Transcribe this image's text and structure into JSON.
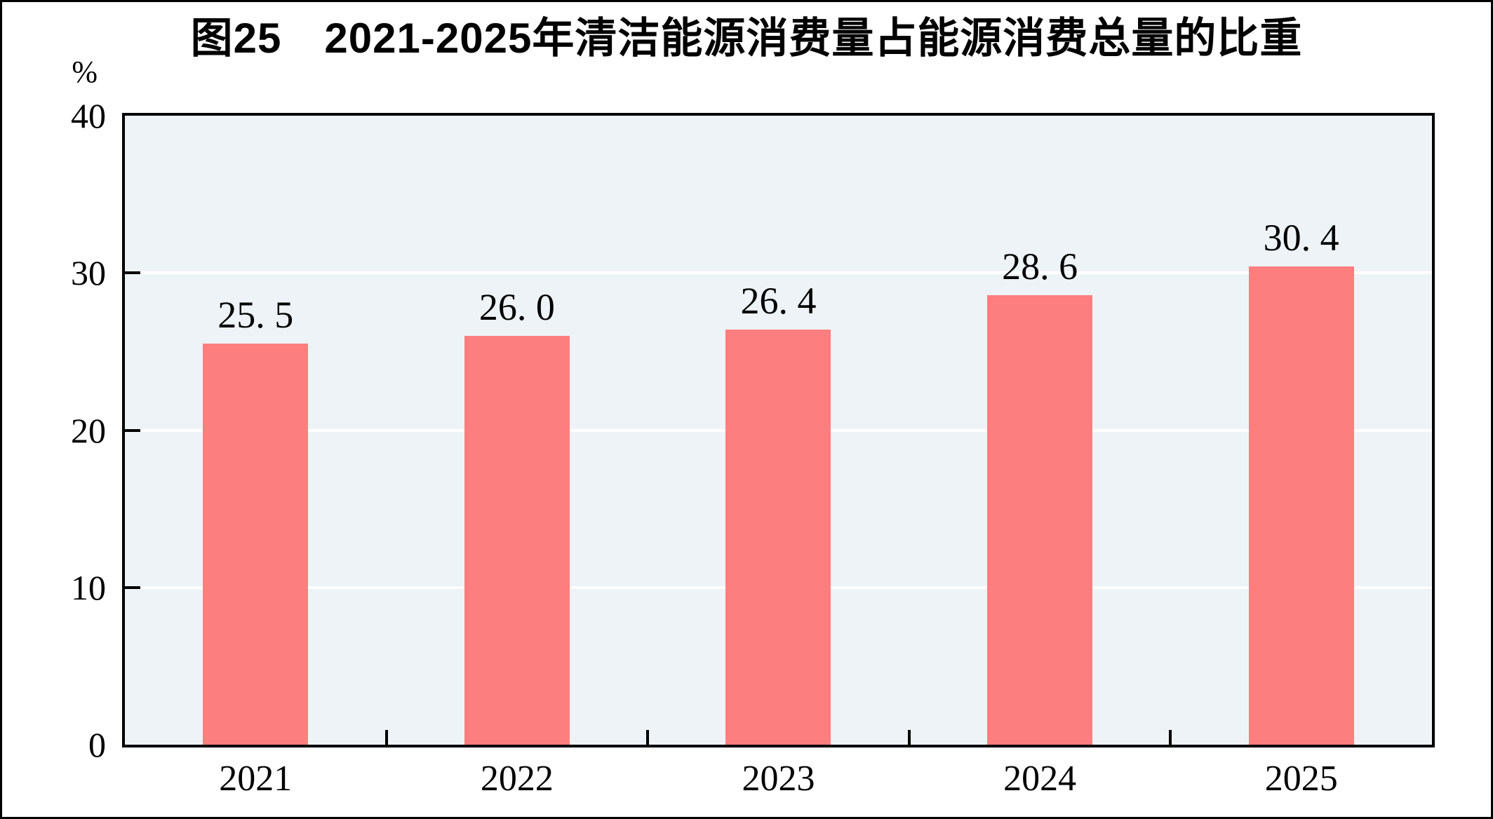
{
  "chart_data": {
    "type": "bar",
    "title": "图25　2021-2025年清洁能源消费量占能源消费总量的比重",
    "categories": [
      "2021",
      "2022",
      "2023",
      "2024",
      "2025"
    ],
    "values": [
      25.5,
      26.0,
      26.4,
      28.6,
      30.4
    ],
    "value_labels": [
      "25. 5",
      "26. 0",
      "26. 4",
      "28. 6",
      "30. 4"
    ],
    "xlabel": "",
    "ylabel": "%",
    "ylim": [
      0,
      40
    ],
    "yticks": [
      0,
      10,
      20,
      30,
      40
    ],
    "grid": "horizontal",
    "gridline_values": [
      10,
      20,
      30
    ],
    "legend": "none",
    "colors": {
      "bar": "#FD7E7E",
      "plot_background": "#EDF3F6",
      "gridline": "#FFFFFF",
      "axis": "#000000",
      "text": "#000000"
    }
  }
}
